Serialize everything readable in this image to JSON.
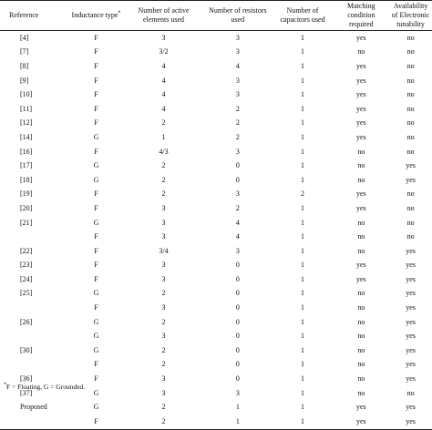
{
  "table": {
    "headers": [
      "Reference",
      "Inductance type",
      "Number of active elements used",
      "Number of resistors used",
      "Number of capacitors used",
      "Matching condition required",
      "Availability of Electronic tunability"
    ],
    "inductance_marker": "*",
    "rows": [
      [
        "[4]",
        "F",
        "3",
        "3",
        "1",
        "yes",
        "no"
      ],
      [
        "[7]",
        "F",
        "3/2",
        "3",
        "1",
        "no",
        "no"
      ],
      [
        "[8]",
        "F",
        "4",
        "4",
        "1",
        "yes",
        "no"
      ],
      [
        "[9]",
        "F",
        "4",
        "3",
        "1",
        "yes",
        "no"
      ],
      [
        "[10]",
        "F",
        "4",
        "3",
        "1",
        "yes",
        "no"
      ],
      [
        "[11]",
        "F",
        "4",
        "2",
        "1",
        "yes",
        "no"
      ],
      [
        "[12]",
        "F",
        "2",
        "2",
        "1",
        "yes",
        "no"
      ],
      [
        "[14]",
        "G",
        "1",
        "2",
        "1",
        "yes",
        "no"
      ],
      [
        "[16]",
        "F",
        "4/3",
        "3",
        "1",
        "no",
        "no"
      ],
      [
        "[17]",
        "G",
        "2",
        "0",
        "1",
        "no",
        "yes"
      ],
      [
        "[18]",
        "G",
        "2",
        "0",
        "1",
        "no",
        "yes"
      ],
      [
        "[19]",
        "F",
        "2",
        "3",
        "2",
        "yes",
        "no"
      ],
      [
        "[20]",
        "F",
        "3",
        "2",
        "1",
        "yes",
        "no"
      ],
      [
        "[21]",
        "G",
        "3",
        "4",
        "1",
        "no",
        "no"
      ],
      [
        "",
        "F",
        "3",
        "4",
        "1",
        "no",
        "no"
      ],
      [
        "[22]",
        "F",
        "3/4",
        "3",
        "1",
        "no",
        "yes"
      ],
      [
        "[23]",
        "F",
        "3",
        "0",
        "1",
        "yes",
        "yes"
      ],
      [
        "[24]",
        "F",
        "3",
        "0",
        "1",
        "yes",
        "yes"
      ],
      [
        "[25]",
        "G",
        "2",
        "0",
        "1",
        "no",
        "yes"
      ],
      [
        "",
        "F",
        "3",
        "0",
        "1",
        "no",
        "yes"
      ],
      [
        "[26]",
        "G",
        "2",
        "0",
        "1",
        "no",
        "yes"
      ],
      [
        "",
        "G",
        "3",
        "0",
        "1",
        "no",
        "yes"
      ],
      [
        "[30]",
        "G",
        "2",
        "0",
        "1",
        "no",
        "yes"
      ],
      [
        "",
        "F",
        "2",
        "0",
        "1",
        "no",
        "yes"
      ],
      [
        "[36]",
        "F",
        "3",
        "0",
        "1",
        "no",
        "yes"
      ],
      [
        "[37]",
        "G",
        "3",
        "3",
        "1",
        "no",
        "no"
      ],
      [
        "Proposed",
        "G",
        "2",
        "1",
        "1",
        "yes",
        "yes"
      ],
      [
        "",
        "F",
        "2",
        "1",
        "1",
        "yes",
        "yes"
      ]
    ]
  },
  "footnote": {
    "marker": "*",
    "text": "F = Floating, G = Grounded."
  }
}
